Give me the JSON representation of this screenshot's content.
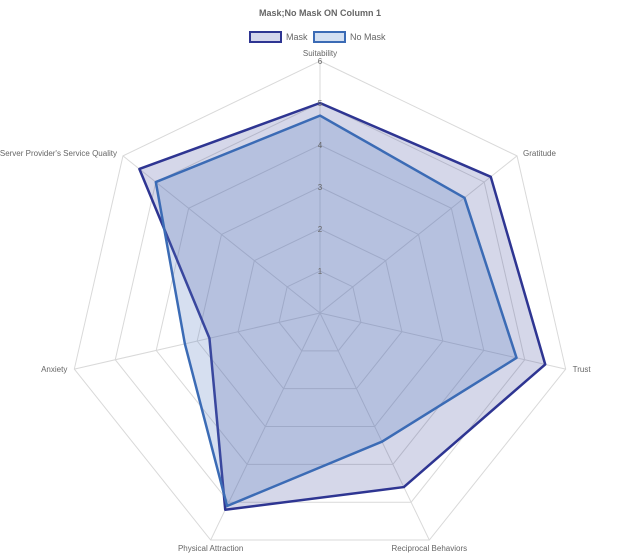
{
  "chart_data": {
    "type": "radar",
    "title": "Mask;No Mask ON Column 1",
    "axes": [
      "Suitability",
      "Gratitude",
      "Trust",
      "Reciprocal Behaviors",
      "Physical Attraction",
      "Anxiety",
      "Server Provider's Service Quality"
    ],
    "ticks": [
      "1",
      "2",
      "3",
      "4",
      "5",
      "6"
    ],
    "rlim": [
      0,
      6
    ],
    "legend_position": "top-center",
    "grid": true,
    "series": [
      {
        "name": "Mask",
        "values": [
          5.0,
          5.2,
          5.5,
          4.6,
          5.2,
          2.7,
          5.5
        ],
        "stroke": "#2e3592",
        "fill": "#2e3592",
        "fill_opacity": 0.2
      },
      {
        "name": "No Mask",
        "values": [
          4.7,
          4.4,
          4.8,
          3.4,
          5.1,
          3.3,
          5.0
        ],
        "stroke": "#3b6bb5",
        "fill": "#5b7fc4",
        "fill_opacity": 0.25
      }
    ]
  }
}
